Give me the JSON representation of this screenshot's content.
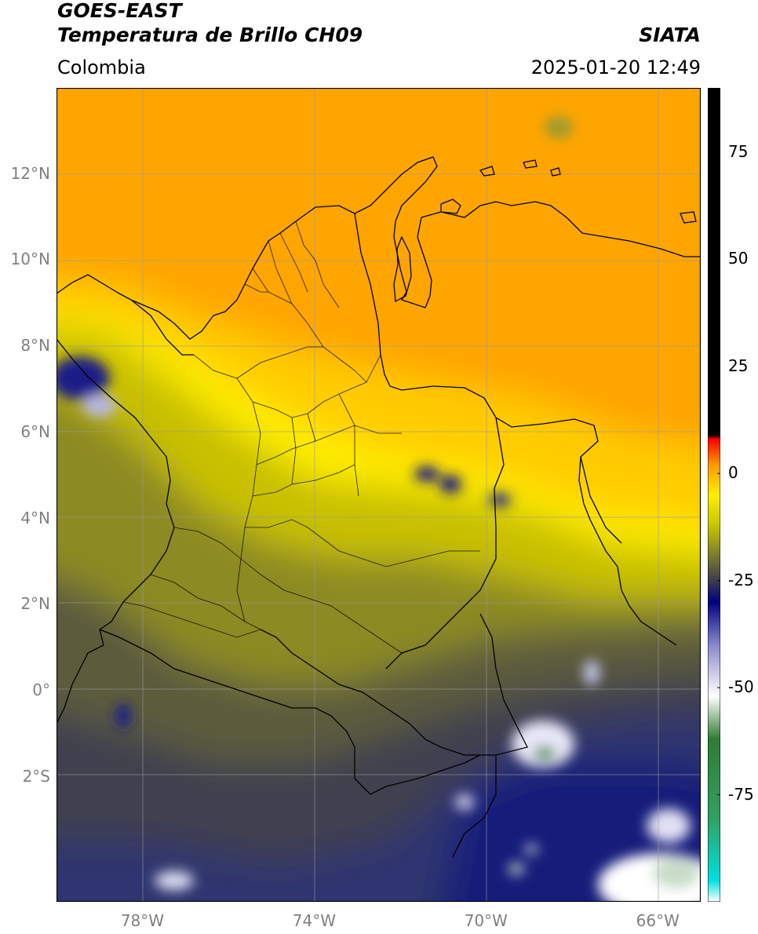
{
  "header": {
    "title_line1": "GOES-EAST",
    "title_line2": "Temperatura de Brillo CH09",
    "source": "SIATA",
    "region": "Colombia",
    "datetime": "2025-01-20 12:49"
  },
  "map": {
    "lat_labels": [
      {
        "value": 12,
        "label": "12°N"
      },
      {
        "value": 10,
        "label": "10°N"
      },
      {
        "value": 8,
        "label": "8°N"
      },
      {
        "value": 6,
        "label": "6°N"
      },
      {
        "value": 4,
        "label": "4°N"
      },
      {
        "value": 2,
        "label": "2°N"
      },
      {
        "value": 0,
        "label": "0°"
      },
      {
        "value": -2,
        "label": "2°S"
      }
    ],
    "lon_labels": [
      {
        "value": -78,
        "label": "78°W"
      },
      {
        "value": -74,
        "label": "74°W"
      },
      {
        "value": -70,
        "label": "70°W"
      },
      {
        "value": -66,
        "label": "66°W"
      }
    ],
    "lon_range": [
      -80,
      -65
    ],
    "lat_range": [
      -4.9,
      14
    ],
    "grid": true
  },
  "colorbar": {
    "range": [
      -100,
      90
    ],
    "ticks": [
      {
        "value": 75,
        "label": "75"
      },
      {
        "value": 50,
        "label": "50"
      },
      {
        "value": 25,
        "label": "25"
      },
      {
        "value": 0,
        "label": "0"
      },
      {
        "value": -25,
        "label": "-25"
      },
      {
        "value": -50,
        "label": "-50"
      },
      {
        "value": -75,
        "label": "-75"
      }
    ],
    "stops": [
      {
        "value": -100,
        "color": "#ffffff"
      },
      {
        "value": -95,
        "color": "#00e0e0"
      },
      {
        "value": -80,
        "color": "#30a060"
      },
      {
        "value": -62,
        "color": "#2e7d32"
      },
      {
        "value": -52,
        "color": "#ffffff"
      },
      {
        "value": -40,
        "color": "#8888cc"
      },
      {
        "value": -30,
        "color": "#000080"
      },
      {
        "value": -25,
        "color": "#3c3c50"
      },
      {
        "value": -12,
        "color": "#c8c800"
      },
      {
        "value": -5,
        "color": "#ffee00"
      },
      {
        "value": 2,
        "color": "#ff9900"
      },
      {
        "value": 8,
        "color": "#ff0000"
      },
      {
        "value": 9,
        "color": "#000000"
      },
      {
        "value": 90,
        "color": "#000000"
      }
    ]
  }
}
